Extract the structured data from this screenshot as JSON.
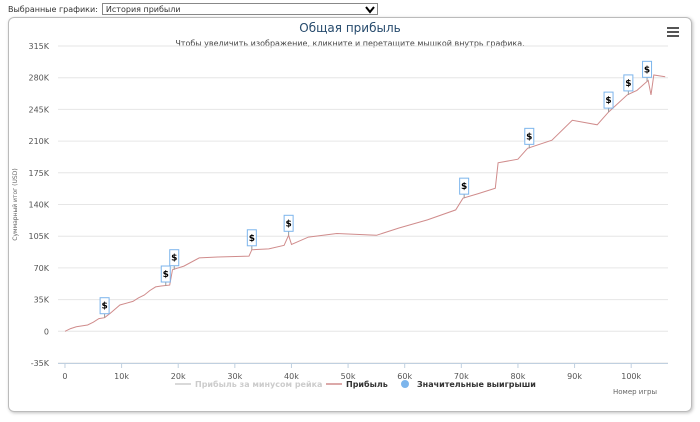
{
  "controls": {
    "label": "Выбранные графики:",
    "selected": "История прибыли"
  },
  "chart_data": {
    "type": "line",
    "title": "Общая прибыль",
    "subtitle": "Чтобы увеличить изображение, кликните и перетащите мышкой внутрь графика.",
    "y_label": "Суммарный итог (USD)",
    "x_label": "Номер игры",
    "xlim": [
      -1230,
      106500
    ],
    "ylim": [
      -35000,
      315000
    ],
    "xticks": [
      {
        "value": 0,
        "label": "0"
      },
      {
        "value": 10000,
        "label": "10k"
      },
      {
        "value": 20000,
        "label": "20k"
      },
      {
        "value": 30000,
        "label": "30k"
      },
      {
        "value": 40000,
        "label": "40k"
      },
      {
        "value": 50000,
        "label": "50k"
      },
      {
        "value": 60000,
        "label": "60k"
      },
      {
        "value": 70000,
        "label": "70k"
      },
      {
        "value": 80000,
        "label": "80k"
      },
      {
        "value": 90000,
        "label": "90k"
      },
      {
        "value": 100000,
        "label": "100k"
      }
    ],
    "yticks": [
      {
        "value": -35000,
        "label": "-35K"
      },
      {
        "value": 0,
        "label": "0"
      },
      {
        "value": 35000,
        "label": "35K"
      },
      {
        "value": 70000,
        "label": "70K"
      },
      {
        "value": 105000,
        "label": "105K"
      },
      {
        "value": 140000,
        "label": "140K"
      },
      {
        "value": 175000,
        "label": "175K"
      },
      {
        "value": 210000,
        "label": "210K"
      },
      {
        "value": 245000,
        "label": "245K"
      },
      {
        "value": 280000,
        "label": "280K"
      },
      {
        "value": 315000,
        "label": "315K"
      }
    ],
    "grid": true,
    "series": [
      {
        "name": "Прибыль за минусом рейка",
        "color": "#cccccc",
        "hidden": true
      },
      {
        "name": "Прибыль",
        "color": "#d08c8c",
        "x": [
          0,
          1000,
          2000,
          4000,
          5000,
          6000,
          7000,
          8000,
          9700,
          12000,
          13000,
          14000,
          15000,
          16000,
          17000,
          18500,
          19000,
          21000,
          23700,
          27000,
          32500,
          33000,
          36000,
          38700,
          39500,
          40000,
          43000,
          48000,
          55000,
          59000,
          64000,
          69000,
          70300,
          73000,
          76000,
          76500,
          80000,
          81700,
          86000,
          89600,
          94000,
          96000,
          99300,
          101000,
          103000,
          103500,
          104000,
          106000
        ],
        "values": [
          0,
          3000,
          5000,
          7000,
          10000,
          14000,
          15000,
          20000,
          29000,
          33000,
          37000,
          40000,
          45000,
          49000,
          50000,
          51000,
          68000,
          72000,
          81000,
          82000,
          83000,
          90000,
          91000,
          95000,
          106000,
          96000,
          104000,
          108000,
          106000,
          114000,
          123000,
          134000,
          147000,
          152000,
          158000,
          186000,
          190000,
          202000,
          211000,
          233000,
          228000,
          242000,
          261000,
          266000,
          277000,
          261000,
          283000,
          281000
        ]
      },
      {
        "name": "Значительные выигрыши",
        "color": "#7cb5ec",
        "marker_label": "$",
        "x": [
          7000,
          17800,
          19300,
          33000,
          39500,
          70500,
          82000,
          96000,
          99500,
          102800
        ],
        "values": [
          15000,
          50000,
          68000,
          90000,
          106000,
          147000,
          202000,
          242000,
          261000,
          276000
        ]
      }
    ]
  }
}
